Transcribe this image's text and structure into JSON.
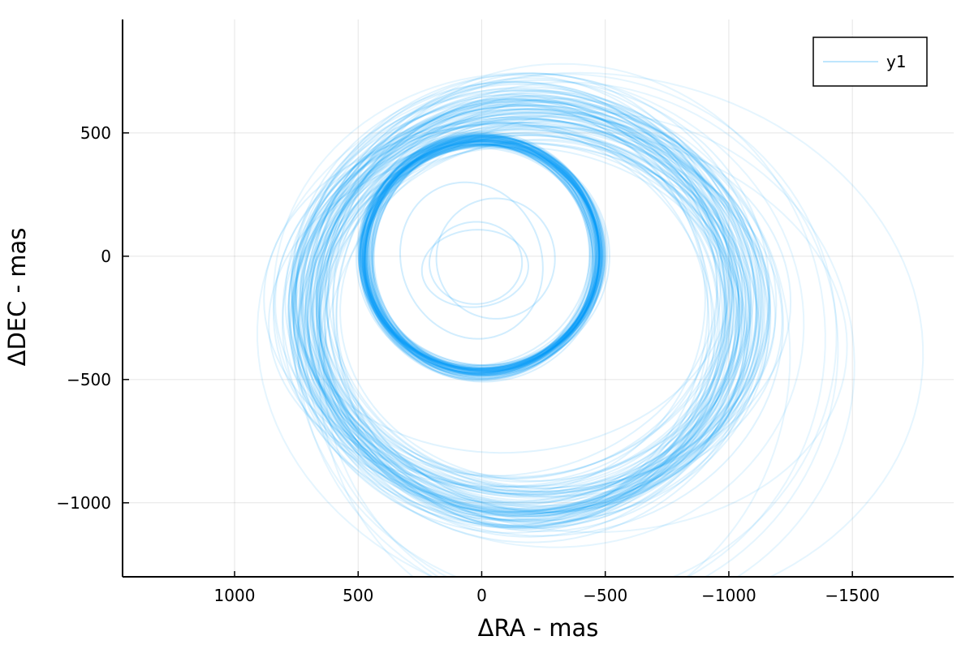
{
  "chart_data": {
    "type": "line",
    "xlabel": "ΔRA - mas",
    "ylabel": "ΔDEC - mas",
    "xlim": [
      1450,
      -1910
    ],
    "ylim": [
      -1300,
      960
    ],
    "x_reversed": true,
    "xticks": [
      1000,
      500,
      0,
      -500,
      -1000,
      -1500
    ],
    "xtick_labels": [
      "1000",
      "500",
      "0",
      "−500",
      "−1000",
      "−1500"
    ],
    "yticks": [
      500,
      0,
      -500,
      -1000
    ],
    "ytick_labels": [
      "500",
      "0",
      "−500",
      "−1000"
    ],
    "grid": true,
    "legend": {
      "position": "top-right",
      "entries": [
        "y1"
      ]
    },
    "series_color": "#009af9",
    "series": [
      {
        "name": "y1",
        "orbit_family": "inner",
        "count": 70,
        "center": [
          0,
          0
        ],
        "rx": [
          475,
          15
        ],
        "ry": [
          470,
          15
        ],
        "opacity": 0.15
      },
      {
        "name": "y1",
        "orbit_family": "outer",
        "count": 90,
        "center": [
          -180,
          -210
        ],
        "rx": [
          880,
          60
        ],
        "ry": [
          810,
          60
        ],
        "opacity": 0.12
      },
      {
        "name": "y1",
        "orbit_family": "small",
        "count": 4,
        "center": [
          0,
          -25
        ],
        "rx": [
          185,
          60
        ],
        "ry": [
          185,
          60
        ],
        "opacity": 0.18
      },
      {
        "name": "y1",
        "orbit_family": "wide",
        "count": 8,
        "center": [
          -350,
          -350
        ],
        "rx": [
          1000,
          120
        ],
        "ry": [
          980,
          120
        ],
        "opacity": 0.1
      }
    ]
  }
}
